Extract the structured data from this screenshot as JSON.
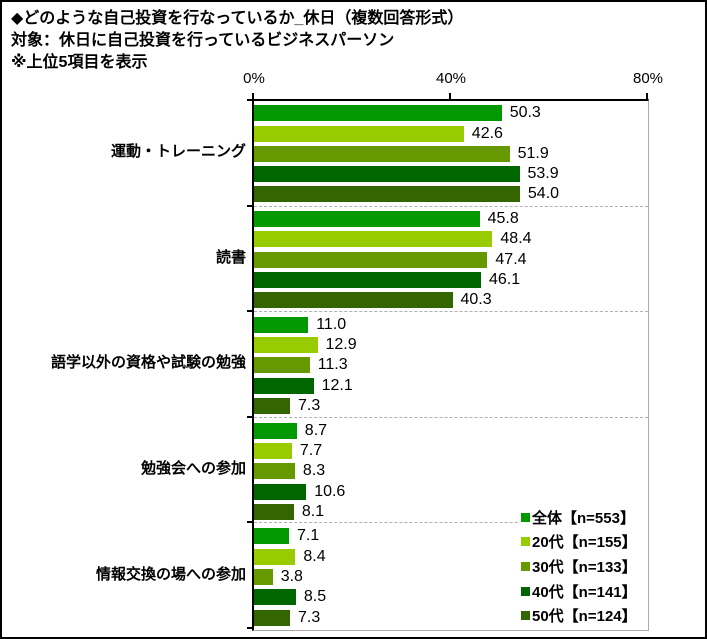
{
  "header": {
    "title": "◆どのような自己投資を行なっているか_休日（複数回答形式）",
    "subtitle": "対象：休日に自己投資を行っているビジネスパーソン",
    "note": "※上位5項目を表示"
  },
  "chart_data": {
    "type": "bar",
    "orientation": "horizontal",
    "title": "どのような自己投資を行なっているか_休日（複数回答形式）",
    "categories": [
      "運動・トレーニング",
      "読書",
      "語学以外の資格や試験の勉強",
      "勉強会への参加",
      "情報交換の場への参加"
    ],
    "series": [
      {
        "name": "全体【n=553】",
        "color": "#009900",
        "values": [
          50.3,
          45.8,
          11.0,
          8.7,
          7.1
        ]
      },
      {
        "name": "20代【n=155】",
        "color": "#99CC00",
        "values": [
          42.6,
          48.4,
          12.9,
          7.7,
          8.4
        ]
      },
      {
        "name": "30代【n=133】",
        "color": "#669900",
        "values": [
          51.9,
          47.4,
          11.3,
          8.3,
          3.8
        ]
      },
      {
        "name": "40代【n=141】",
        "color": "#006600",
        "values": [
          53.9,
          46.1,
          12.1,
          10.6,
          8.5
        ]
      },
      {
        "name": "50代【n=124】",
        "color": "#336600",
        "values": [
          54.0,
          40.3,
          7.3,
          8.1,
          7.3
        ]
      }
    ],
    "xlim": [
      0,
      80
    ],
    "x_ticks": [
      "0%",
      "40%",
      "80%"
    ],
    "value_labels": "shown, one decimal",
    "legend_position": "bottom-right inside plot",
    "grid": "dashed horizontal separators between category groups",
    "plot_border_colors": {
      "axis": "#000000",
      "plot": "#aaaaaa"
    }
  }
}
